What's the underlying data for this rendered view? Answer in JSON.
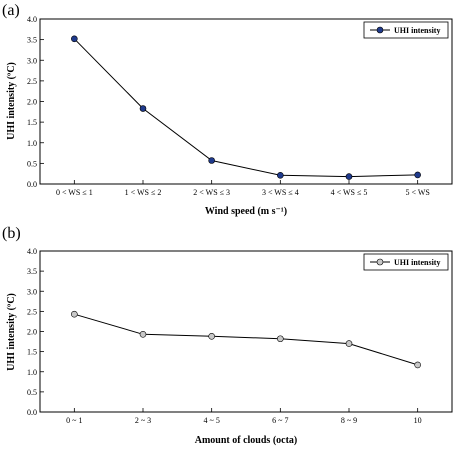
{
  "chart_data": [
    {
      "type": "line",
      "panel_label": "(a)",
      "title": "",
      "xlabel": "Wind speed (m s⁻¹)",
      "ylabel": "UHI intensity (ºC)",
      "categories": [
        "0 < WS ≤  1",
        "1 < WS ≤  2",
        "2 < WS ≤  3",
        "3 < WS ≤  4",
        "4 < WS ≤  5",
        "5 < WS"
      ],
      "series": [
        {
          "name": "UHI intensity",
          "values": [
            3.52,
            1.83,
            0.57,
            0.21,
            0.18,
            0.22
          ],
          "color": "#1f3a8c"
        }
      ],
      "ylim": [
        0,
        4.0
      ],
      "yticks": [
        "0.0",
        "0.5",
        "1.0",
        "1.5",
        "2.0",
        "2.5",
        "3.0",
        "3.5",
        "4.0"
      ],
      "grid": false,
      "legend": "top-right"
    },
    {
      "type": "line",
      "panel_label": "(b)",
      "title": "",
      "xlabel": "Amount of clouds (octa)",
      "ylabel": "UHI intensity (ºC)",
      "categories": [
        "0 ~ 1",
        "2 ~ 3",
        "4 ~ 5",
        "6 ~ 7",
        "8 ~ 9",
        "10"
      ],
      "series": [
        {
          "name": "UHI intensity",
          "values": [
            2.43,
            1.93,
            1.88,
            1.82,
            1.7,
            1.17
          ],
          "color": "#c8c8c8"
        }
      ],
      "ylim": [
        0,
        4.0
      ],
      "yticks": [
        "0.0",
        "0.5",
        "1.0",
        "1.5",
        "2.0",
        "2.5",
        "3.0",
        "3.5",
        "4.0"
      ],
      "grid": false,
      "legend": "top-right"
    }
  ]
}
